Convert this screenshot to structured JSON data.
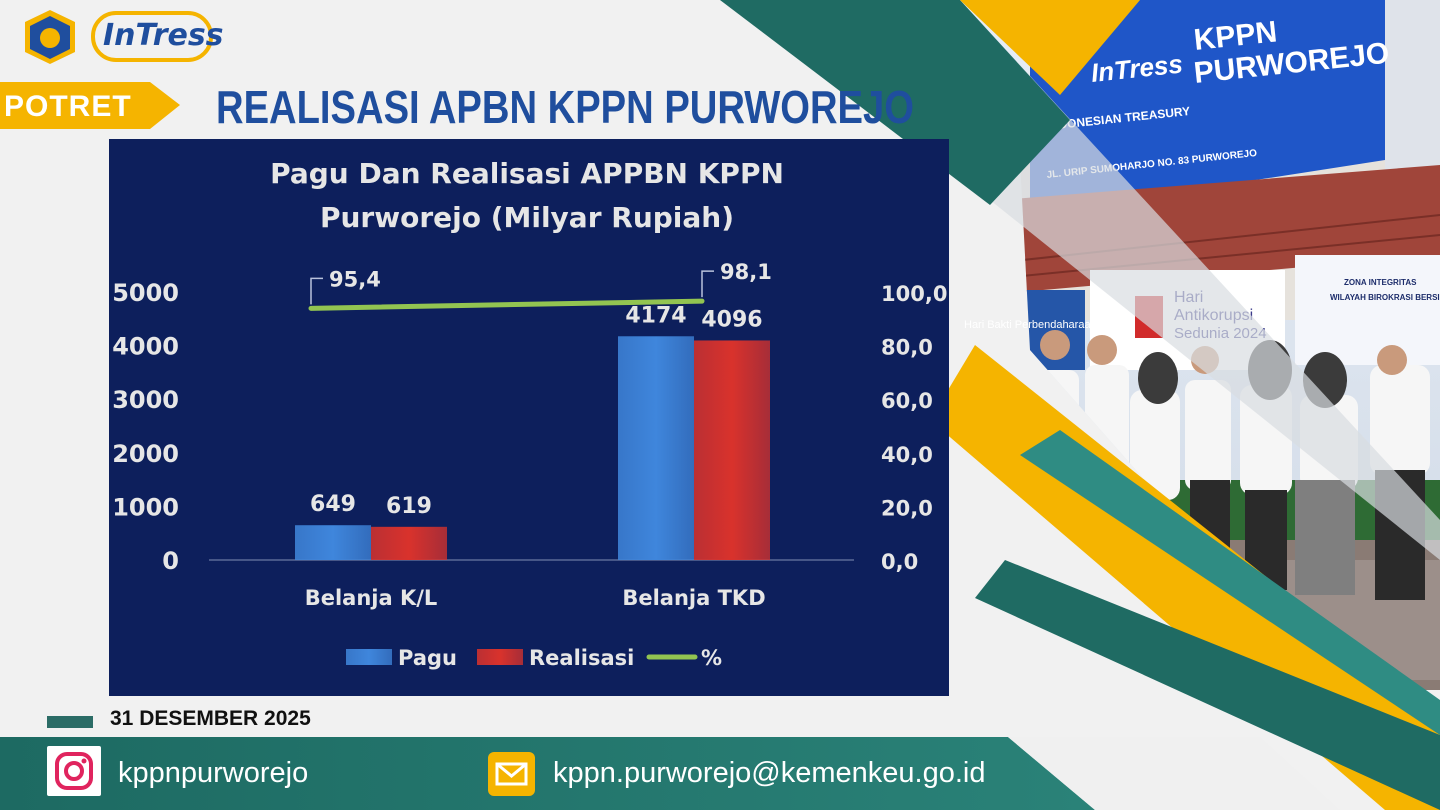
{
  "header": {
    "brand_logo_text": "InTress",
    "section_tab": "POTRET",
    "headline": "REALISASI APBN KPPN PURWOREJO"
  },
  "photo": {
    "sign_title": "KPPN PURWOREJO",
    "sign_subtitle": "INDONESIAN TREASURY",
    "sign_logo_text": "InTress",
    "sign_address": "JL. URIP SUMOHARJO NO. 83 PURWOREJO",
    "banner_1": "Hari Bakti Perbendaharaan",
    "banner_2_line1": "Hari",
    "banner_2_line2": "Antikorupsi",
    "banner_2_line3": "Sedunia 2024",
    "banner_3_line1": "ZONA INTEGRITAS",
    "banner_3_line2": "WILAYAH BIROKRASI BERSIH"
  },
  "chart_data": {
    "type": "bar",
    "title_line1": "Pagu Dan Realisasi APPBN KPPN",
    "title_line2": "Purworejo (Milyar Rupiah)",
    "categories": [
      "Belanja K/L",
      "Belanja TKD"
    ],
    "series": [
      {
        "name": "Pagu",
        "type": "bar",
        "values": [
          649,
          4174
        ],
        "color": "#3f86dc"
      },
      {
        "name": "Realisasi",
        "type": "bar",
        "values": [
          619,
          4096
        ],
        "color": "#d9322c"
      },
      {
        "name": "%",
        "type": "line",
        "axis": "right",
        "values": [
          95.4,
          98.1
        ],
        "labels": [
          "95,4",
          "98,1"
        ],
        "color": "#92c451"
      }
    ],
    "y_left": {
      "ylim": [
        0,
        5000
      ],
      "ticks": [
        0,
        1000,
        2000,
        3000,
        4000,
        5000
      ],
      "tick_labels": [
        "0",
        "1000",
        "2000",
        "3000",
        "4000",
        "5000"
      ]
    },
    "y_right": {
      "ylim": [
        0,
        100
      ],
      "ticks": [
        0,
        20,
        40,
        60,
        80,
        100
      ],
      "tick_labels": [
        "0,0",
        "20,0",
        "40,0",
        "60,0",
        "80,0",
        "100,0"
      ]
    },
    "grid": false,
    "legend": "bottom",
    "background": "#0d1f5c"
  },
  "footer": {
    "date": "31 DESEMBER 2025",
    "instagram_handle": "kppnpurworejo",
    "email": "kppn.purworejo@kemenkeu.go.id",
    "instagram_icon": "instagram-icon",
    "email_icon": "mail-icon"
  },
  "colors": {
    "teal_dark": "#1f6b63",
    "teal": "#2f8c83",
    "yellow": "#f5b400",
    "navy_text": "#1f4e9e"
  }
}
